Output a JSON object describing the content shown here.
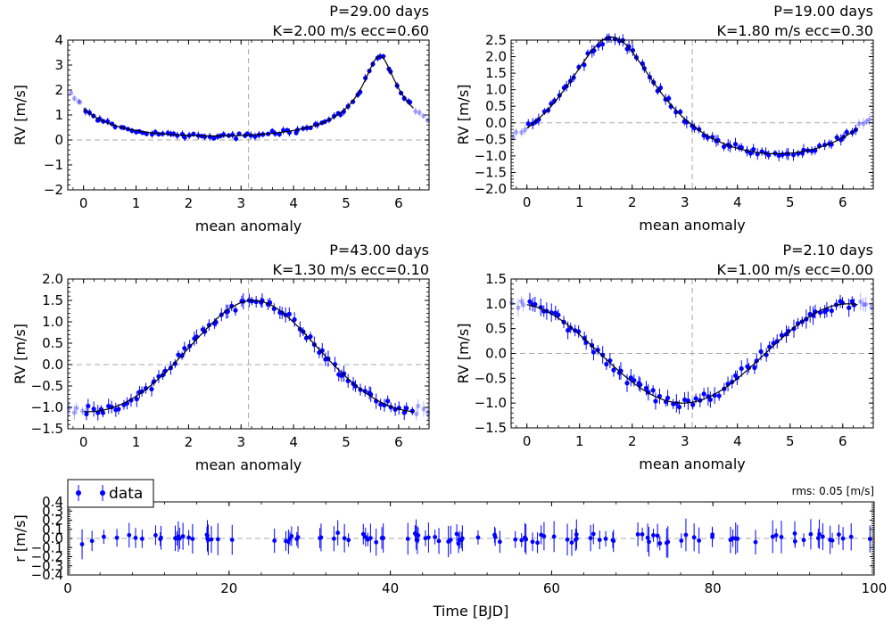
{
  "style": {
    "data_color": "#0000ff",
    "model_color": "#000000",
    "ref_line_color": "#aaaaaa"
  },
  "chart_data": [
    {
      "type": "scatter",
      "annotation": [
        "P=29.00 days",
        "K=2.00 m/s  ecc=0.60"
      ],
      "xlabel": "mean anomaly",
      "ylabel": "RV [m/s]",
      "xlim": [
        -0.3,
        6.58
      ],
      "ylim": [
        -2,
        4
      ],
      "xticks": [
        0,
        1,
        2,
        3,
        4,
        5,
        6
      ],
      "yticks": [
        -2,
        -1,
        0,
        1,
        2,
        3,
        4
      ],
      "ytick_labels": [
        "−2",
        "−1",
        "0",
        "1",
        "2",
        "3",
        "4"
      ],
      "model": {
        "K": 2.0,
        "ecc": 0.6,
        "omega": 0.0
      },
      "series": [
        {
          "x_range": [
            0,
            6.28
          ],
          "n_points": 85,
          "error": 0.1,
          "wrapped_region": "faded"
        }
      ]
    },
    {
      "type": "scatter",
      "annotation": [
        "P=19.00 days",
        "K=1.80 m/s  ecc=0.30"
      ],
      "xlabel": "mean anomaly",
      "ylabel": "RV [m/s]",
      "xlim": [
        -0.3,
        6.58
      ],
      "ylim": [
        -2,
        2.5
      ],
      "xticks": [
        0,
        1,
        2,
        3,
        4,
        5,
        6
      ],
      "yticks": [
        -2,
        -1.5,
        -1,
        -0.5,
        0,
        0.5,
        1,
        1.5,
        2,
        2.5
      ],
      "ytick_labels": [
        "−2.0",
        "−1.5",
        "−1.0",
        "−0.5",
        "0.0",
        "0.5",
        "1.0",
        "1.5",
        "2.0",
        "2.5"
      ],
      "model": {
        "K": 1.8,
        "ecc": 0.3,
        "omega": -1.8
      },
      "series": [
        {
          "x_range": [
            0,
            6.28
          ],
          "n_points": 85,
          "error": 0.12,
          "wrapped_region": "faded"
        }
      ]
    },
    {
      "type": "scatter",
      "annotation": [
        "P=43.00 days",
        "K=1.30 m/s  ecc=0.10"
      ],
      "xlabel": "mean anomaly",
      "ylabel": "RV [m/s]",
      "xlim": [
        -0.3,
        6.58
      ],
      "ylim": [
        -1.5,
        2
      ],
      "xticks": [
        0,
        1,
        2,
        3,
        4,
        5,
        6
      ],
      "yticks": [
        -1.5,
        -1,
        -0.5,
        0,
        0.5,
        1,
        1.5,
        2
      ],
      "ytick_labels": [
        "−1.5",
        "−1.0",
        "−0.5",
        "0.0",
        "0.5",
        "1.0",
        "1.5",
        "2.0"
      ],
      "model": {
        "K": 1.3,
        "ecc": 0.1,
        "omega": 0.0,
        "offset": 0.07
      },
      "series": [
        {
          "x_range": [
            0,
            6.28
          ],
          "n_points": 85,
          "error": 0.12,
          "wrapped_region": "faded"
        }
      ]
    },
    {
      "type": "scatter",
      "annotation": [
        "P=2.10 days",
        "K=1.00 m/s  ecc=0.00"
      ],
      "xlabel": "mean anomaly",
      "ylabel": "RV [m/s]",
      "xlim": [
        -0.3,
        6.58
      ],
      "ylim": [
        -1.5,
        1.5
      ],
      "xticks": [
        0,
        1,
        2,
        3,
        4,
        5,
        6
      ],
      "yticks": [
        -1.5,
        -1,
        -0.5,
        0,
        0.5,
        1,
        1.5
      ],
      "ytick_labels": [
        "−1.5",
        "−1.0",
        "−0.5",
        "0.0",
        "0.5",
        "1.0",
        "1.5"
      ],
      "model": {
        "K": 1.0,
        "ecc": 0.0,
        "omega": 0.0
      },
      "series": [
        {
          "x_range": [
            0,
            6.28
          ],
          "n_points": 85,
          "error": 0.12,
          "wrapped_region": "faded"
        }
      ]
    },
    {
      "type": "scatter",
      "xlabel": "Time [BJD]",
      "ylabel": "r [m/s]",
      "xlim": [
        0,
        100
      ],
      "ylim": [
        -0.4,
        0.4
      ],
      "xticks": [
        0,
        20,
        40,
        60,
        80,
        100
      ],
      "yticks": [
        -0.4,
        -0.3,
        -0.2,
        -0.1,
        0,
        0.1,
        0.2,
        0.3,
        0.4
      ],
      "ytick_labels": [
        "−0.4",
        "−0.3",
        "−0.2",
        "−0.1",
        "0.0",
        "0.1",
        "0.2",
        "0.3",
        "0.4"
      ],
      "annotation_rms": "rms: 0.05 [m/s]",
      "legend": {
        "label": "data",
        "placement": "top-left"
      },
      "series": [
        {
          "name": "data",
          "n_points": 120,
          "error": 0.12,
          "x_range": [
            0,
            100
          ]
        }
      ]
    }
  ]
}
